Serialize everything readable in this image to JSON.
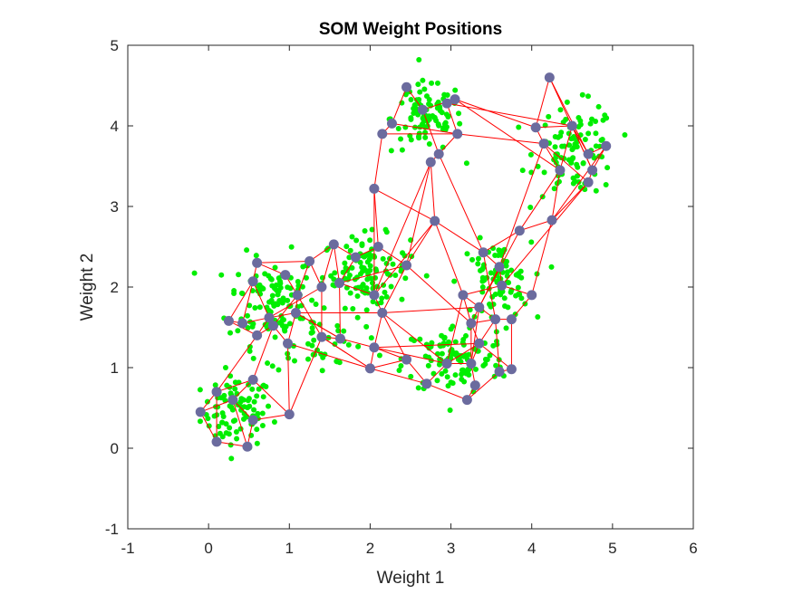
{
  "chart_data": {
    "type": "scatter",
    "title": "SOM Weight Positions",
    "xlabel": "Weight 1",
    "ylabel": "Weight 2",
    "xlim": [
      -1,
      6
    ],
    "ylim": [
      -1,
      5
    ],
    "xticks": [
      "-1",
      "0",
      "1",
      "2",
      "3",
      "4",
      "5",
      "6"
    ],
    "yticks": [
      "-1",
      "0",
      "1",
      "2",
      "3",
      "4",
      "5"
    ],
    "grid": false,
    "colors": {
      "inputs": "#00ee00",
      "weights": "#6b6b9e",
      "links": "#ff0000"
    },
    "input_clusters": [
      {
        "cx": 0.35,
        "cy": 0.45,
        "sx": 0.22,
        "sy": 0.22,
        "n": 90
      },
      {
        "cx": 0.8,
        "cy": 1.85,
        "sx": 0.28,
        "sy": 0.28,
        "n": 110
      },
      {
        "cx": 1.95,
        "cy": 2.2,
        "sx": 0.27,
        "sy": 0.22,
        "n": 110
      },
      {
        "cx": 2.7,
        "cy": 4.1,
        "sx": 0.22,
        "sy": 0.22,
        "n": 90
      },
      {
        "cx": 4.55,
        "cy": 3.7,
        "sx": 0.25,
        "sy": 0.28,
        "n": 100
      },
      {
        "cx": 3.55,
        "cy": 2.05,
        "sx": 0.22,
        "sy": 0.25,
        "n": 90
      },
      {
        "cx": 3.05,
        "cy": 1.1,
        "sx": 0.32,
        "sy": 0.22,
        "n": 110
      },
      {
        "cx": 1.3,
        "cy": 1.35,
        "sx": 0.3,
        "sy": 0.2,
        "n": 40
      }
    ],
    "weights": [
      [
        0.1,
        0.08
      ],
      [
        0.48,
        0.02
      ],
      [
        0.55,
        0.35
      ],
      [
        1.0,
        0.42
      ],
      [
        0.55,
        0.85
      ],
      [
        0.1,
        0.7
      ],
      [
        -0.1,
        0.45
      ],
      [
        0.3,
        0.6
      ],
      [
        0.25,
        1.58
      ],
      [
        0.6,
        1.4
      ],
      [
        0.8,
        1.52
      ],
      [
        0.98,
        1.3
      ],
      [
        1.08,
        1.68
      ],
      [
        0.75,
        1.62
      ],
      [
        0.42,
        1.55
      ],
      [
        0.55,
        2.07
      ],
      [
        0.6,
        2.3
      ],
      [
        0.95,
        2.15
      ],
      [
        1.1,
        1.9
      ],
      [
        1.25,
        2.32
      ],
      [
        1.4,
        2.0
      ],
      [
        1.55,
        2.53
      ],
      [
        1.82,
        2.37
      ],
      [
        2.1,
        2.5
      ],
      [
        2.45,
        2.27
      ],
      [
        1.62,
        2.05
      ],
      [
        2.05,
        1.9
      ],
      [
        2.15,
        1.68
      ],
      [
        1.4,
        1.38
      ],
      [
        1.63,
        1.36
      ],
      [
        2.8,
        2.82
      ],
      [
        2.05,
        3.22
      ],
      [
        2.15,
        3.9
      ],
      [
        2.27,
        4.03
      ],
      [
        2.45,
        4.48
      ],
      [
        2.65,
        4.2
      ],
      [
        3.05,
        4.33
      ],
      [
        2.95,
        4.28
      ],
      [
        3.08,
        3.9
      ],
      [
        2.85,
        3.65
      ],
      [
        2.75,
        3.55
      ],
      [
        4.22,
        4.6
      ],
      [
        4.05,
        3.98
      ],
      [
        4.15,
        3.78
      ],
      [
        4.35,
        3.45
      ],
      [
        4.5,
        4.0
      ],
      [
        4.7,
        3.65
      ],
      [
        4.92,
        3.75
      ],
      [
        4.75,
        3.45
      ],
      [
        4.7,
        3.3
      ],
      [
        4.25,
        2.83
      ],
      [
        3.85,
        2.7
      ],
      [
        3.4,
        2.43
      ],
      [
        3.6,
        2.25
      ],
      [
        3.63,
        2.02
      ],
      [
        3.15,
        1.9
      ],
      [
        3.35,
        1.75
      ],
      [
        3.55,
        1.6
      ],
      [
        3.75,
        1.6
      ],
      [
        4.0,
        1.9
      ],
      [
        3.25,
        1.55
      ],
      [
        2.05,
        1.25
      ],
      [
        2.0,
        0.99
      ],
      [
        2.45,
        1.1
      ],
      [
        2.7,
        0.8
      ],
      [
        2.95,
        1.05
      ],
      [
        3.25,
        1.05
      ],
      [
        3.3,
        0.78
      ],
      [
        3.2,
        0.6
      ],
      [
        3.6,
        0.95
      ],
      [
        3.75,
        0.98
      ],
      [
        3.35,
        1.3
      ]
    ],
    "links": [
      [
        0,
        1
      ],
      [
        1,
        2
      ],
      [
        2,
        3
      ],
      [
        0,
        5
      ],
      [
        5,
        6
      ],
      [
        6,
        7
      ],
      [
        7,
        2
      ],
      [
        4,
        5
      ],
      [
        4,
        3
      ],
      [
        4,
        10
      ],
      [
        5,
        9
      ],
      [
        0,
        6
      ],
      [
        3,
        11
      ],
      [
        7,
        4
      ],
      [
        1,
        7
      ],
      [
        8,
        9
      ],
      [
        9,
        10
      ],
      [
        10,
        11
      ],
      [
        11,
        12
      ],
      [
        12,
        13
      ],
      [
        13,
        14
      ],
      [
        14,
        8
      ],
      [
        8,
        15
      ],
      [
        15,
        16
      ],
      [
        16,
        17
      ],
      [
        17,
        18
      ],
      [
        18,
        19
      ],
      [
        19,
        20
      ],
      [
        20,
        13
      ],
      [
        15,
        13
      ],
      [
        9,
        13
      ],
      [
        12,
        18
      ],
      [
        14,
        15
      ],
      [
        10,
        18
      ],
      [
        16,
        19
      ],
      [
        20,
        21
      ],
      [
        21,
        22
      ],
      [
        22,
        23
      ],
      [
        23,
        24
      ],
      [
        24,
        25
      ],
      [
        25,
        21
      ],
      [
        25,
        26
      ],
      [
        26,
        27
      ],
      [
        27,
        24
      ],
      [
        20,
        28
      ],
      [
        28,
        29
      ],
      [
        29,
        25
      ],
      [
        22,
        25
      ],
      [
        19,
        21
      ],
      [
        18,
        28
      ],
      [
        12,
        29
      ],
      [
        30,
        31
      ],
      [
        31,
        32
      ],
      [
        32,
        33
      ],
      [
        33,
        34
      ],
      [
        34,
        35
      ],
      [
        35,
        36
      ],
      [
        36,
        37
      ],
      [
        37,
        38
      ],
      [
        38,
        39
      ],
      [
        39,
        40
      ],
      [
        40,
        30
      ],
      [
        35,
        39
      ],
      [
        33,
        38
      ],
      [
        32,
        38
      ],
      [
        31,
        23
      ],
      [
        30,
        24
      ],
      [
        40,
        26
      ],
      [
        41,
        42
      ],
      [
        42,
        43
      ],
      [
        43,
        44
      ],
      [
        44,
        45
      ],
      [
        45,
        46
      ],
      [
        46,
        47
      ],
      [
        47,
        48
      ],
      [
        48,
        49
      ],
      [
        49,
        50
      ],
      [
        50,
        44
      ],
      [
        41,
        46
      ],
      [
        42,
        45
      ],
      [
        43,
        49
      ],
      [
        45,
        48
      ],
      [
        36,
        42
      ],
      [
        38,
        43
      ],
      [
        37,
        45
      ],
      [
        50,
        51
      ],
      [
        51,
        52
      ],
      [
        52,
        53
      ],
      [
        53,
        54
      ],
      [
        54,
        55
      ],
      [
        55,
        56
      ],
      [
        56,
        57
      ],
      [
        57,
        58
      ],
      [
        58,
        59
      ],
      [
        59,
        54
      ],
      [
        55,
        60
      ],
      [
        60,
        57
      ],
      [
        51,
        44
      ],
      [
        52,
        30
      ],
      [
        53,
        43
      ],
      [
        54,
        49
      ],
      [
        59,
        50
      ],
      [
        51,
        56
      ],
      [
        61,
        62
      ],
      [
        62,
        63
      ],
      [
        63,
        64
      ],
      [
        64,
        65
      ],
      [
        65,
        66
      ],
      [
        66,
        67
      ],
      [
        67,
        68
      ],
      [
        68,
        69
      ],
      [
        69,
        70
      ],
      [
        70,
        71
      ],
      [
        71,
        66
      ],
      [
        65,
        71
      ],
      [
        61,
        63
      ],
      [
        62,
        64
      ],
      [
        71,
        57
      ],
      [
        70,
        58
      ],
      [
        66,
        60
      ],
      [
        69,
        57
      ],
      [
        61,
        29
      ],
      [
        61,
        27
      ],
      [
        62,
        28
      ],
      [
        63,
        27
      ],
      [
        61,
        65
      ],
      [
        62,
        11
      ],
      [
        29,
        12
      ],
      [
        28,
        3
      ],
      [
        61,
        71
      ],
      [
        71,
        60
      ],
      [
        65,
        55
      ],
      [
        66,
        56
      ],
      [
        64,
        68
      ],
      [
        27,
        56
      ],
      [
        26,
        30
      ],
      [
        30,
        55
      ],
      [
        24,
        40
      ],
      [
        31,
        26
      ],
      [
        52,
        57
      ],
      [
        53,
        60
      ],
      [
        39,
        52
      ],
      [
        41,
        48
      ],
      [
        44,
        36
      ],
      [
        47,
        50
      ],
      [
        24,
        60
      ],
      [
        27,
        65
      ],
      [
        28,
        62
      ],
      [
        12,
        27
      ]
    ]
  }
}
